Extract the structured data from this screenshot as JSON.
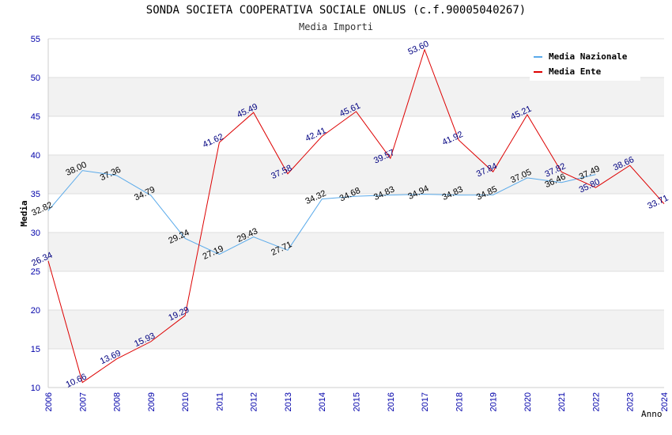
{
  "chart_data": {
    "type": "line",
    "title": "SONDA SOCIETA COOPERATIVA SOCIALE ONLUS (c.f.90005040267)",
    "subtitle": "Media Importi",
    "xlabel": "Anno",
    "ylabel": "Media",
    "x": [
      "2006",
      "2007",
      "2008",
      "2009",
      "2010",
      "2011",
      "2012",
      "2013",
      "2014",
      "2015",
      "2016",
      "2017",
      "2018",
      "2019",
      "2020",
      "2021",
      "2022",
      "2023",
      "2024"
    ],
    "ylim": [
      10,
      55
    ],
    "yticks": [
      10,
      15,
      20,
      25,
      30,
      35,
      40,
      45,
      50,
      55
    ],
    "grid": true,
    "legend_position": "top-right",
    "series": [
      {
        "name": "Media Nazionale",
        "color": "#5aaaea",
        "label_color": "#000000",
        "values": [
          32.82,
          38.0,
          37.36,
          34.79,
          29.24,
          27.19,
          29.43,
          27.71,
          34.32,
          34.68,
          34.83,
          34.94,
          34.83,
          34.85,
          37.05,
          36.46,
          37.49,
          null,
          null
        ],
        "labels": [
          "32.82",
          "38.00",
          "37.36",
          "34.79",
          "29.24",
          "27.19",
          "29.43",
          "27.71",
          "34.32",
          "34.68",
          "34.83",
          "34.94",
          "34.83",
          "34.85",
          "37.05",
          "36.46",
          "37.49",
          null,
          null
        ]
      },
      {
        "name": "Media Ente",
        "color": "#dd0000",
        "label_color": "#000080",
        "values": [
          26.34,
          10.66,
          13.69,
          15.93,
          19.29,
          41.62,
          45.49,
          37.58,
          42.41,
          45.61,
          39.57,
          53.6,
          41.92,
          37.84,
          45.21,
          37.82,
          35.8,
          38.66,
          33.71
        ],
        "labels": [
          "26.34",
          "10.66",
          "13.69",
          "15.93",
          "19.29",
          "41.62",
          "45.49",
          "37.58",
          "42.41",
          "45.61",
          "39.57",
          "53.60",
          "41.92",
          "37.84",
          "45.21",
          "37.82",
          "35.80",
          "38.66",
          "33.71"
        ]
      }
    ]
  }
}
